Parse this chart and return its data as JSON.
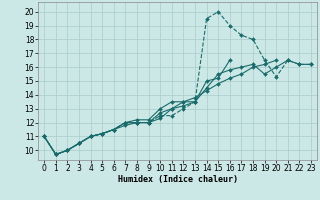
{
  "xlabel": "Humidex (Indice chaleur)",
  "xlim": [
    -0.5,
    23.5
  ],
  "ylim": [
    9.3,
    20.7
  ],
  "yticks": [
    10,
    11,
    12,
    13,
    14,
    15,
    16,
    17,
    18,
    19,
    20
  ],
  "xticks": [
    0,
    1,
    2,
    3,
    4,
    5,
    6,
    7,
    8,
    9,
    10,
    11,
    12,
    13,
    14,
    15,
    16,
    17,
    18,
    19,
    20,
    21,
    22,
    23
  ],
  "bg_color": "#cce8e6",
  "grid_color": "#aacccc",
  "line_color": "#1a6b6b",
  "series_x": [
    0,
    1,
    2,
    3,
    4,
    5,
    6,
    7,
    8,
    9,
    10,
    11,
    12,
    13,
    14,
    15,
    16,
    17,
    18,
    19,
    20,
    21,
    22,
    23
  ],
  "series": [
    [
      11,
      9.7,
      10.0,
      10.5,
      11.0,
      11.2,
      11.5,
      12.0,
      12.0,
      12.0,
      12.5,
      12.5,
      13.0,
      13.5,
      19.5,
      20.0,
      19.0,
      18.3,
      18.0,
      16.5,
      15.3,
      16.5,
      16.2,
      16.2
    ],
    [
      11,
      9.7,
      10.0,
      10.5,
      11.0,
      11.2,
      11.5,
      11.8,
      12.0,
      12.0,
      12.3,
      13.0,
      13.5,
      13.5,
      15.0,
      15.2,
      16.5,
      null,
      null,
      null,
      null,
      null,
      null,
      null
    ],
    [
      11,
      9.7,
      10.0,
      10.5,
      11.0,
      11.2,
      11.5,
      12.0,
      12.0,
      12.0,
      12.7,
      13.0,
      13.2,
      13.5,
      14.5,
      15.5,
      15.8,
      16.0,
      16.2,
      15.5,
      16.0,
      16.5,
      16.2,
      16.2
    ],
    [
      11,
      9.7,
      10.0,
      10.5,
      11.0,
      11.2,
      11.5,
      12.0,
      12.2,
      12.2,
      13.0,
      13.5,
      13.5,
      13.8,
      14.3,
      14.8,
      15.2,
      15.5,
      16.0,
      16.2,
      16.5,
      null,
      null,
      null
    ]
  ],
  "line_styles": [
    "--",
    "-",
    "-",
    "-"
  ]
}
